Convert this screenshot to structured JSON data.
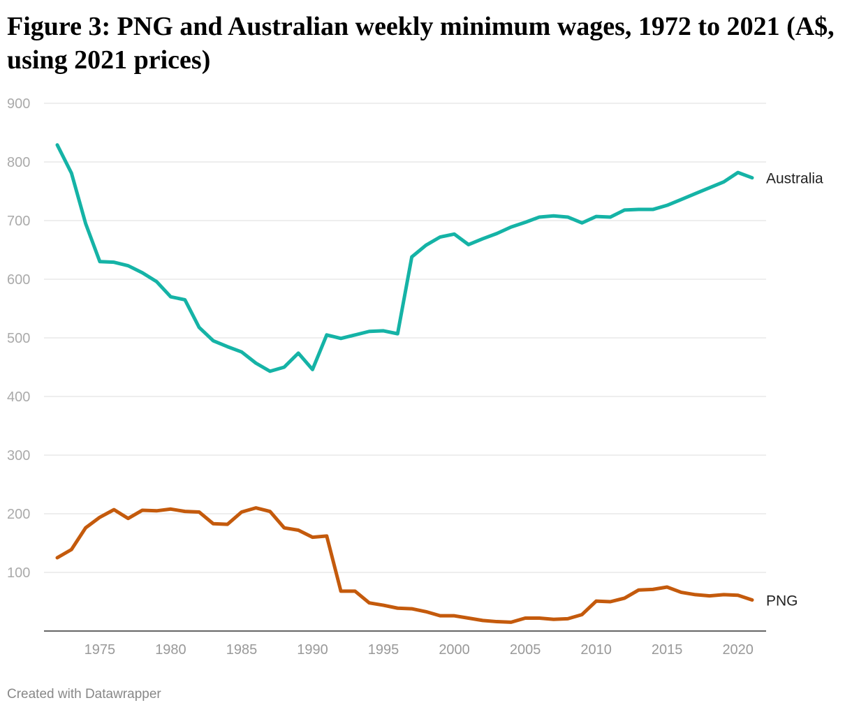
{
  "title": "Figure 3: PNG and Australian weekly minimum wages, 1972 to 2021 (A$, using 2021 prices)",
  "footer": "Created with Datawrapper",
  "chart_data": {
    "type": "line",
    "title": "Figure 3: PNG and Australian weekly minimum wages, 1972 to 2021 (A$, using 2021 prices)",
    "xlabel": "",
    "ylabel": "",
    "grid": true,
    "ylim": [
      0,
      900
    ],
    "xlim": [
      1972,
      2021
    ],
    "y_ticks": [
      100,
      200,
      300,
      400,
      500,
      600,
      700,
      800,
      900
    ],
    "y_tick_labels": [
      "100",
      "200",
      "300",
      "400",
      "500",
      "600",
      "700",
      "800",
      "900"
    ],
    "x_ticks": [
      1975,
      1980,
      1985,
      1990,
      1995,
      2000,
      2005,
      2010,
      2015,
      2020
    ],
    "x_tick_labels": [
      "1975",
      "1980",
      "1985",
      "1990",
      "1995",
      "2000",
      "2005",
      "2010",
      "2015",
      "2020"
    ],
    "x": [
      1972,
      1973,
      1974,
      1975,
      1976,
      1977,
      1978,
      1979,
      1980,
      1981,
      1982,
      1983,
      1984,
      1985,
      1986,
      1987,
      1988,
      1989,
      1990,
      1991,
      1992,
      1993,
      1994,
      1995,
      1996,
      1997,
      1998,
      1999,
      2000,
      2001,
      2002,
      2003,
      2004,
      2005,
      2006,
      2007,
      2008,
      2009,
      2010,
      2011,
      2012,
      2013,
      2014,
      2015,
      2016,
      2017,
      2018,
      2019,
      2020,
      2021
    ],
    "series": [
      {
        "name": "Australia",
        "color": "#15b3a6",
        "values": [
          829,
          781,
          695,
          630,
          629,
          623,
          611,
          596,
          570,
          565,
          518,
          495,
          485,
          476,
          457,
          443,
          450,
          474,
          446,
          505,
          499,
          505,
          511,
          512,
          507,
          638,
          658,
          672,
          677,
          659,
          669,
          678,
          689,
          697,
          706,
          708,
          706,
          696,
          707,
          706,
          718,
          719,
          719,
          726,
          736,
          746,
          756,
          766,
          782,
          773
        ]
      },
      {
        "name": "PNG",
        "color": "#c45a0c",
        "values": [
          125,
          139,
          176,
          194,
          207,
          192,
          206,
          205,
          208,
          204,
          203,
          183,
          182,
          203,
          210,
          204,
          176,
          172,
          160,
          162,
          68,
          68,
          48,
          44,
          39,
          38,
          33,
          26,
          26,
          22,
          18,
          16,
          15,
          22,
          22,
          20,
          21,
          28,
          51,
          50,
          56,
          70,
          71,
          75,
          66,
          62,
          60,
          62,
          61,
          53
        ]
      }
    ],
    "legend": "direct labels at right end of lines"
  }
}
